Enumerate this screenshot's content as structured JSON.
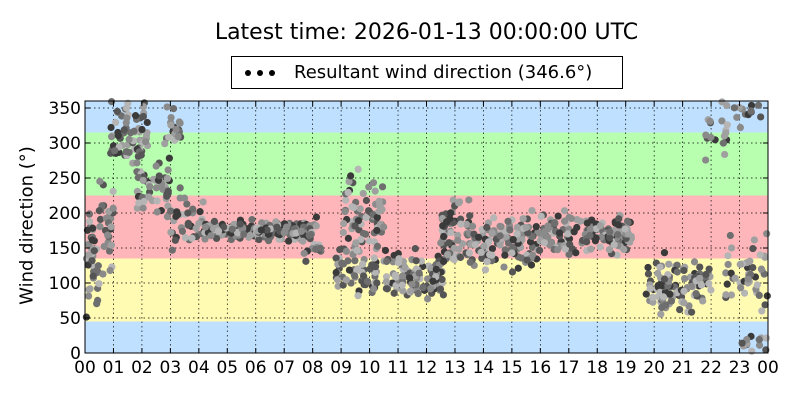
{
  "chart_data": {
    "type": "scatter",
    "title": "Latest time: 2026-01-13 00:00:00 UTC",
    "ylabel": "Wind direction (°)",
    "xlabel": "",
    "legend": {
      "label": "Resultant wind direction (346.6°)",
      "placement": "top-center"
    },
    "xlim": [
      0,
      24
    ],
    "ylim": [
      0,
      360
    ],
    "grid": true,
    "x_ticks": [
      "00",
      "01",
      "02",
      "03",
      "04",
      "05",
      "06",
      "07",
      "08",
      "09",
      "10",
      "11",
      "12",
      "13",
      "14",
      "15",
      "16",
      "17",
      "18",
      "19",
      "20",
      "21",
      "22",
      "23",
      "00"
    ],
    "y_ticks": [
      0,
      50,
      100,
      150,
      200,
      250,
      300,
      350
    ],
    "bands": [
      {
        "from": 0,
        "to": 45,
        "color": "#bfe0ff"
      },
      {
        "from": 45,
        "to": 135,
        "color": "#fffbb3"
      },
      {
        "from": 135,
        "to": 225,
        "color": "#ffb6ba"
      },
      {
        "from": 225,
        "to": 315,
        "color": "#b8ffb0"
      },
      {
        "from": 315,
        "to": 360,
        "color": "#bfe0ff"
      }
    ],
    "segments": [
      {
        "t0": 0.0,
        "t1": 0.5,
        "center": 130,
        "spread": 70,
        "n": 45
      },
      {
        "t0": 0.5,
        "t1": 1.0,
        "center": 180,
        "spread": 60,
        "n": 30
      },
      {
        "t0": 0.9,
        "t1": 2.2,
        "center": 310,
        "spread": 50,
        "n": 70
      },
      {
        "t0": 1.8,
        "t1": 3.0,
        "center": 240,
        "spread": 40,
        "n": 50
      },
      {
        "t0": 2.8,
        "t1": 3.4,
        "center": 320,
        "spread": 40,
        "n": 20
      },
      {
        "t0": 3.0,
        "t1": 4.2,
        "center": 190,
        "spread": 35,
        "n": 40
      },
      {
        "t0": 4.2,
        "t1": 7.8,
        "center": 175,
        "spread": 12,
        "n": 220
      },
      {
        "t0": 7.5,
        "t1": 8.3,
        "center": 160,
        "spread": 30,
        "n": 25
      },
      {
        "t0": 8.8,
        "t1": 10.3,
        "center": 110,
        "spread": 35,
        "n": 60
      },
      {
        "t0": 9.0,
        "t1": 10.5,
        "center": 200,
        "spread": 60,
        "n": 70
      },
      {
        "t0": 10.5,
        "t1": 12.6,
        "center": 110,
        "spread": 30,
        "n": 110
      },
      {
        "t0": 12.5,
        "t1": 13.5,
        "center": 170,
        "spread": 40,
        "n": 60
      },
      {
        "t0": 13.5,
        "t1": 16.0,
        "center": 160,
        "spread": 35,
        "n": 130
      },
      {
        "t0": 16.0,
        "t1": 19.2,
        "center": 170,
        "spread": 30,
        "n": 150
      },
      {
        "t0": 19.7,
        "t1": 22.0,
        "center": 95,
        "spread": 35,
        "n": 110
      },
      {
        "t0": 21.8,
        "t1": 22.6,
        "center": 320,
        "spread": 40,
        "n": 18
      },
      {
        "t0": 22.5,
        "t1": 24.0,
        "center": 110,
        "spread": 60,
        "n": 45
      },
      {
        "t0": 22.8,
        "t1": 24.0,
        "center": 345,
        "spread": 20,
        "n": 12
      },
      {
        "t0": 23.0,
        "t1": 24.0,
        "center": 10,
        "spread": 15,
        "n": 12
      }
    ],
    "point_colors": [
      "#a0a0a0",
      "#8a8a8a",
      "#6e6e6e",
      "#555555",
      "#3a3a3a",
      "#b5b5b5"
    ]
  }
}
